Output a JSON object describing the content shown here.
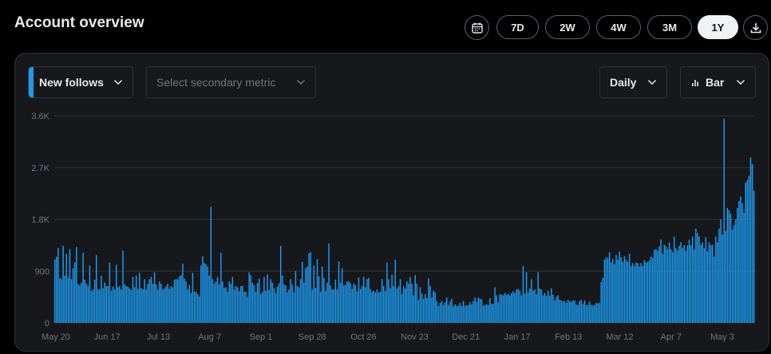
{
  "header": {
    "title": "Account overview",
    "ranges": [
      "7D",
      "2W",
      "4W",
      "3M",
      "1Y"
    ],
    "active_range": "1Y",
    "calendar_icon": "calendar-icon",
    "download_icon": "download-icon"
  },
  "controls": {
    "primary_metric": "New follows",
    "secondary_metric_placeholder": "Select secondary metric",
    "granularity": "Daily",
    "chart_type_label": "Bar",
    "chart_type_icon": "bar-chart-icon",
    "accent_color": "#1d9bf0"
  },
  "chart_data": {
    "type": "bar",
    "ylim": [
      0,
      3600
    ],
    "yticks": [
      0,
      900,
      1800,
      2700,
      3600
    ],
    "ytick_labels": [
      "0",
      "900",
      "1.8K",
      "2.7K",
      "3.6K"
    ],
    "xtick_labels": [
      "May 20",
      "Jun 17",
      "Jul 13",
      "Aug 7",
      "Sep 1",
      "Sep 28",
      "Oct 26",
      "Nov 23",
      "Dec 21",
      "Jan 17",
      "Feb 13",
      "Mar 12",
      "Apr 7",
      "May 3"
    ],
    "grid": true,
    "bar_color": "#1d9bf0",
    "series": [
      {
        "name": "New follows",
        "values": [
          1100,
          1150,
          1300,
          780,
          760,
          1340,
          820,
          1200,
          790,
          1280,
          760,
          950,
          1050,
          1320,
          680,
          650,
          700,
          1220,
          750,
          680,
          640,
          1000,
          560,
          580,
          750,
          1180,
          580,
          580,
          820,
          600,
          700,
          640,
          640,
          1050,
          560,
          630,
          580,
          1010,
          620,
          640,
          580,
          1260,
          670,
          640,
          630,
          600,
          570,
          800,
          620,
          820,
          590,
          870,
          600,
          580,
          760,
          580,
          680,
          760,
          800,
          680,
          880,
          670,
          580,
          720,
          680,
          580,
          600,
          640,
          680,
          590,
          640,
          620,
          750,
          760,
          760,
          810,
          830,
          1030,
          770,
          720,
          580,
          660,
          520,
          870,
          540,
          540,
          500,
          460,
          1000,
          1160,
          1040,
          1020,
          980,
          820,
          2020,
          760,
          680,
          720,
          800,
          670,
          1220,
          720,
          610,
          620,
          540,
          720,
          680,
          800,
          580,
          640,
          620,
          550,
          640,
          640,
          540,
          540,
          450,
          880,
          830,
          700,
          660,
          540,
          690,
          770,
          500,
          540,
          800,
          560,
          840,
          570,
          760,
          700,
          600,
          520,
          630,
          690,
          1340,
          820,
          670,
          650,
          530,
          580,
          760,
          660,
          530,
          900,
          640,
          620,
          760,
          1060,
          700,
          950,
          980,
          1210,
          1230,
          580,
          1000,
          610,
          1110,
          810,
          540,
          980,
          780,
          560,
          700,
          1380,
          650,
          580,
          580,
          750,
          580,
          1070,
          700,
          950,
          650,
          660,
          720,
          720,
          690,
          590,
          680,
          660,
          550,
          790,
          590,
          640,
          800,
          620,
          760,
          780,
          590,
          540,
          560,
          530,
          580,
          530,
          540,
          760,
          640,
          560,
          1050,
          760,
          600,
          840,
          640,
          1100,
          600,
          640,
          760,
          500,
          640,
          600,
          720,
          680,
          800,
          680,
          480,
          830,
          680,
          400,
          620,
          510,
          420,
          500,
          430,
          770,
          640,
          440,
          560,
          530,
          380,
          290,
          350,
          380,
          310,
          360,
          440,
          310,
          370,
          420,
          290,
          320,
          290,
          300,
          350,
          290,
          380,
          300,
          300,
          310,
          360,
          320,
          380,
          440,
          370,
          440,
          420,
          410,
          300,
          310,
          320,
          310,
          430,
          330,
          330,
          620,
          480,
          360,
          500,
          490,
          480,
          520,
          490,
          500,
          480,
          520,
          550,
          520,
          580,
          590,
          560,
          480,
          990,
          510,
          880,
          530,
          600,
          760,
          560,
          580,
          500,
          880,
          600,
          580,
          480,
          520,
          470,
          560,
          470,
          600,
          490,
          390,
          450,
          480,
          400,
          390,
          380,
          380,
          350,
          400,
          380,
          370,
          390,
          390,
          320,
          310,
          380,
          400,
          330,
          390,
          310,
          310,
          370,
          310,
          300,
          310,
          350,
          340,
          350,
          710,
          780,
          1100,
          1140,
          1120,
          1230,
          1050,
          1110,
          1020,
          1180,
          1100,
          1240,
          1140,
          1060,
          1160,
          1100,
          1060,
          1200,
          990,
          1040,
          990,
          1050,
          1040,
          980,
          1040,
          990,
          1090,
          1050,
          1060,
          1090,
          1150,
          1130,
          1270,
          1280,
          1250,
          1330,
          1450,
          1200,
          1360,
          1330,
          1280,
          1400,
          1280,
          1230,
          1500,
          1300,
          1260,
          1340,
          1400,
          1300,
          1350,
          1250,
          1350,
          1450,
          1350,
          1500,
          1280,
          1640,
          1560,
          1500,
          1360,
          1400,
          1300,
          1490,
          1250,
          1400,
          1350,
          1360,
          1150,
          1500,
          1400,
          1640,
          1800,
          1540,
          3550,
          1600,
          2000,
          1960,
          1900,
          1620,
          1700,
          1800,
          2000,
          2120,
          2200,
          2080,
          1920,
          2440,
          2480,
          2560,
          2880,
          2760,
          2300
        ]
      }
    ]
  }
}
